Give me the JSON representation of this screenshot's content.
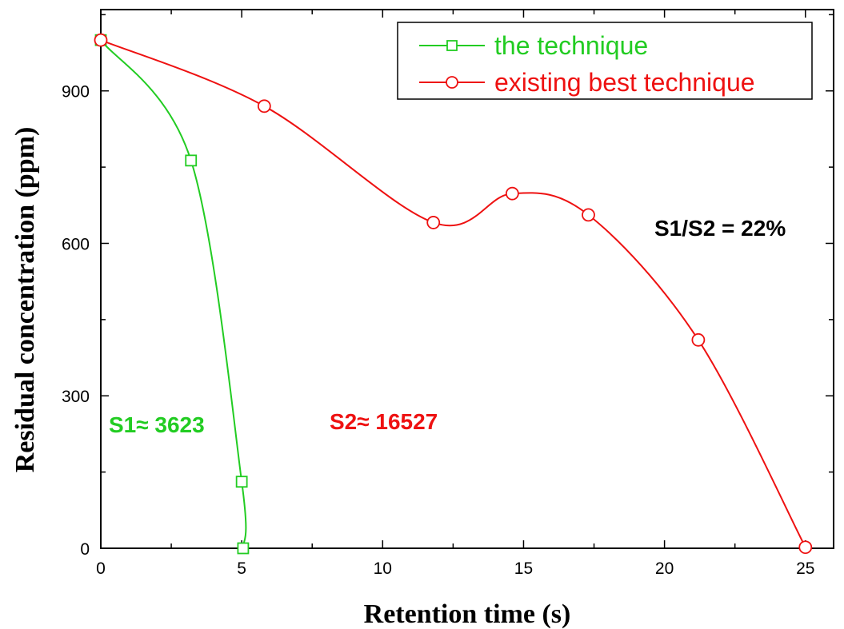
{
  "chart_data": {
    "type": "line",
    "title": "",
    "xlabel": "Retention time (s)",
    "ylabel": "Residual concentration (ppm)",
    "xlim": [
      0,
      26
    ],
    "ylim": [
      0,
      1060
    ],
    "xticks": [
      0,
      5,
      10,
      15,
      20,
      25
    ],
    "yticks": [
      0,
      300,
      600,
      900
    ],
    "grid": false,
    "legend": "top-right",
    "series": [
      {
        "name": "the technique",
        "color": "#22cc22",
        "marker": "square",
        "points": [
          [
            0,
            1000
          ],
          [
            3.2,
            763
          ],
          [
            5.0,
            131
          ],
          [
            5.05,
            0
          ]
        ]
      },
      {
        "name": "existing best technique",
        "color": "#ee1111",
        "marker": "circle",
        "points": [
          [
            0,
            1000
          ],
          [
            5.8,
            870
          ],
          [
            11.8,
            641
          ],
          [
            14.6,
            698
          ],
          [
            17.3,
            656
          ],
          [
            21.2,
            410
          ],
          [
            25.0,
            2
          ]
        ]
      }
    ],
    "annotations": [
      {
        "text": "S1≈ 3623",
        "color": "#22cc22"
      },
      {
        "text": "S2≈ 16527",
        "color": "#ee1111"
      },
      {
        "text": "S1/S2 = 22%",
        "color": "#000000"
      }
    ]
  }
}
